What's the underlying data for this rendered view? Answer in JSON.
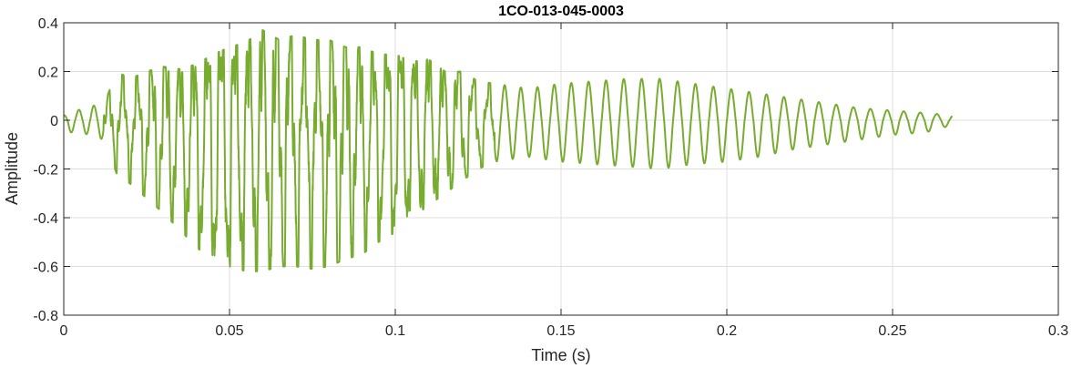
{
  "chart_data": {
    "type": "line",
    "title": "1CO-013-045-0003",
    "xlabel": "Time (s)",
    "ylabel": "Amplitude",
    "xlim": [
      0,
      0.3
    ],
    "ylim": [
      -0.8,
      0.4
    ],
    "x_ticks": [
      0,
      0.05,
      0.1,
      0.15,
      0.2,
      0.25,
      0.3
    ],
    "x_tick_labels": [
      "0",
      "0.05",
      "0.1",
      "0.15",
      "0.2",
      "0.25",
      "0.3"
    ],
    "y_ticks": [
      -0.8,
      -0.6,
      -0.4,
      -0.2,
      0,
      0.2,
      0.4
    ],
    "y_tick_labels": [
      "-0.8",
      "-0.6",
      "-0.4",
      "-0.2",
      "0",
      "0.2",
      "0.4"
    ],
    "grid": true,
    "series_color": "#77ac30",
    "grid_color": "#dfdfdf",
    "axis_color": "#262626",
    "series": [
      {
        "x": [
          0,
          0.004,
          0.008,
          0.012,
          0.016,
          0.02,
          0.025,
          0.03,
          0.035,
          0.04,
          0.045,
          0.05,
          0.055,
          0.06,
          0.065,
          0.07,
          0.075,
          0.08,
          0.085,
          0.09,
          0.095,
          0.1,
          0.105,
          0.11,
          0.115,
          0.12,
          0.125,
          0.13,
          0.135,
          0.14,
          0.15,
          0.16,
          0.17,
          0.18,
          0.19,
          0.2,
          0.21,
          0.22,
          0.23,
          0.24,
          0.25,
          0.26,
          0.268
        ],
        "upper": [
          0.02,
          0.04,
          0.06,
          0.06,
          0.2,
          0.17,
          0.2,
          0.22,
          0.21,
          0.23,
          0.27,
          0.3,
          0.32,
          0.37,
          0.33,
          0.35,
          0.33,
          0.33,
          0.3,
          0.3,
          0.27,
          0.27,
          0.24,
          0.25,
          0.2,
          0.2,
          0.16,
          0.15,
          0.14,
          0.13,
          0.15,
          0.16,
          0.17,
          0.17,
          0.15,
          0.13,
          0.11,
          0.09,
          0.07,
          0.05,
          0.04,
          0.03,
          0.02
        ],
        "lower": [
          -0.05,
          -0.05,
          -0.06,
          -0.08,
          -0.22,
          -0.26,
          -0.32,
          -0.38,
          -0.45,
          -0.52,
          -0.58,
          -0.6,
          -0.62,
          -0.62,
          -0.6,
          -0.6,
          -0.61,
          -0.6,
          -0.57,
          -0.55,
          -0.5,
          -0.46,
          -0.4,
          -0.35,
          -0.3,
          -0.25,
          -0.2,
          -0.17,
          -0.16,
          -0.15,
          -0.17,
          -0.18,
          -0.19,
          -0.2,
          -0.18,
          -0.17,
          -0.15,
          -0.12,
          -0.1,
          -0.08,
          -0.06,
          -0.05,
          -0.02
        ],
        "cycle_hz": [
          220,
          220,
          220,
          230,
          230,
          230,
          235,
          235,
          235,
          240,
          240,
          240,
          240,
          240,
          240,
          240,
          240,
          240,
          240,
          240,
          240,
          240,
          240,
          230,
          225,
          220,
          215,
          210,
          205,
          200,
          195,
          190,
          185,
          185,
          185,
          185,
          190,
          190,
          190,
          195,
          200,
          200,
          200
        ],
        "noise_start": 0.012,
        "noise_end": 0.13
      }
    ]
  }
}
